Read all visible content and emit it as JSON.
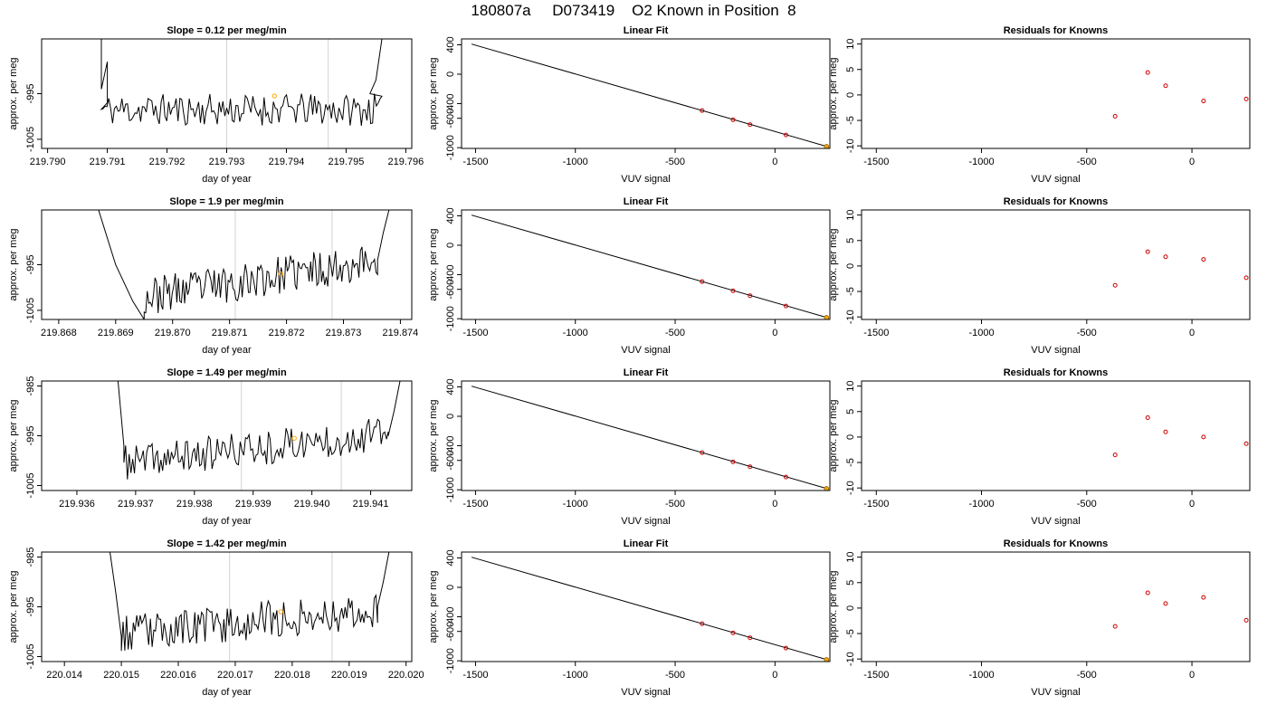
{
  "page_title": "180807a     D073419    O2 Known in Position  8",
  "colors": {
    "trace": "#000000",
    "marker": "#ffa500",
    "residual": "#cc0000",
    "guide_line": "#d3d3d3"
  },
  "chart_data": [
    {
      "type": "line",
      "title": "Slope =  0.12  per meg/min",
      "xlabel": "day of year",
      "ylabel": "approx. per meg",
      "xlim": [
        219.7899,
        219.7961
      ],
      "ylim": [
        -1007,
        -983
      ],
      "x_ticks": [
        "219.790",
        "219.791",
        "219.792",
        "219.793",
        "219.794",
        "219.795",
        "219.796"
      ],
      "x_tick_values": [
        219.79,
        219.791,
        219.792,
        219.793,
        219.794,
        219.795,
        219.796
      ],
      "y_ticks": [
        "-1005",
        "-995"
      ],
      "y_tick_values": [
        -1005,
        -995
      ],
      "vertical_lines": [
        219.793,
        219.7947
      ],
      "marker": {
        "x": 219.7938,
        "y": -995.5
      },
      "trace": {
        "start": 219.7909,
        "end": 219.7956,
        "base": -998.5,
        "trend": 0.0,
        "noise": 2.2,
        "seed": 11,
        "left_edge": [
          [
            219.7909,
            -983
          ],
          [
            219.7909,
            -994
          ],
          [
            219.791,
            -988
          ],
          [
            219.791,
            -997
          ]
        ],
        "right_edge": [
          [
            219.7954,
            -995
          ],
          [
            219.7955,
            -992
          ],
          [
            219.7956,
            -983
          ]
        ]
      }
    },
    {
      "type": "line",
      "title": "Slope =  1.9  per meg/min",
      "xlabel": "day of year",
      "ylabel": "approx. per meg",
      "xlim": [
        219.8677,
        219.8742
      ],
      "ylim": [
        -1007,
        -983
      ],
      "x_ticks": [
        "219.868",
        "219.869",
        "219.870",
        "219.871",
        "219.872",
        "219.873",
        "219.874"
      ],
      "x_tick_values": [
        219.868,
        219.869,
        219.87,
        219.871,
        219.872,
        219.873,
        219.874
      ],
      "y_ticks": [
        "-1005",
        "-995"
      ],
      "y_tick_values": [
        -1005,
        -995
      ],
      "vertical_lines": [
        219.8711,
        219.8728
      ],
      "marker": {
        "x": 219.8719,
        "y": -997
      },
      "trace": {
        "start": 219.8695,
        "end": 219.8736,
        "base": -1002,
        "trend": 8.0,
        "noise": 2.6,
        "seed": 23,
        "left_edge": [
          [
            219.8687,
            -983
          ],
          [
            219.869,
            -995
          ],
          [
            219.8693,
            -1003
          ],
          [
            219.8695,
            -1007
          ]
        ],
        "right_edge": [
          [
            219.8736,
            -994
          ],
          [
            219.8737,
            -988
          ],
          [
            219.8738,
            -983
          ]
        ]
      }
    },
    {
      "type": "line",
      "title": "Slope =  1.49  per meg/min",
      "xlabel": "day of year",
      "ylabel": "approx. per meg",
      "xlim": [
        219.9354,
        219.9417
      ],
      "ylim": [
        -1006,
        -984
      ],
      "x_ticks": [
        "219.936",
        "219.937",
        "219.938",
        "219.939",
        "219.940",
        "219.941"
      ],
      "x_tick_values": [
        219.936,
        219.937,
        219.938,
        219.939,
        219.94,
        219.941
      ],
      "y_ticks": [
        "-1005",
        "-995",
        "-985"
      ],
      "y_tick_values": [
        -1005,
        -995,
        -985
      ],
      "vertical_lines": [
        219.9388,
        219.9405
      ],
      "marker": {
        "x": 219.9397,
        "y": -995.5
      },
      "trace": {
        "start": 219.9368,
        "end": 219.9413,
        "base": -1000.5,
        "trend": 6.0,
        "noise": 2.2,
        "seed": 37,
        "left_edge": [
          [
            219.9367,
            -984
          ],
          [
            219.9368,
            -997
          ]
        ],
        "right_edge": [
          [
            219.9413,
            -995
          ],
          [
            219.9414,
            -990
          ],
          [
            219.9415,
            -984
          ]
        ]
      }
    },
    {
      "type": "line",
      "title": "Slope =  1.42  per meg/min",
      "xlabel": "day of year",
      "ylabel": "approx. per meg",
      "xlim": [
        220.0136,
        220.0201
      ],
      "ylim": [
        -1006,
        -984
      ],
      "x_ticks": [
        "220.014",
        "220.015",
        "220.016",
        "220.017",
        "220.018",
        "220.019",
        "220.020"
      ],
      "x_tick_values": [
        220.014,
        220.015,
        220.016,
        220.017,
        220.018,
        220.019,
        220.02
      ],
      "y_ticks": [
        "-1005",
        "-995",
        "-985"
      ],
      "y_tick_values": [
        -1005,
        -995,
        -985
      ],
      "vertical_lines": [
        220.0169,
        220.0187
      ],
      "marker": {
        "x": 220.0178,
        "y": -996
      },
      "trace": {
        "start": 220.015,
        "end": 220.0195,
        "base": -1000.5,
        "trend": 5.0,
        "noise": 2.4,
        "seed": 53,
        "left_edge": [
          [
            220.0148,
            -984
          ],
          [
            220.0149,
            -992
          ],
          [
            220.015,
            -1001
          ]
        ],
        "right_edge": [
          [
            220.0195,
            -995
          ],
          [
            220.0196,
            -990
          ],
          [
            220.0197,
            -984
          ]
        ]
      }
    },
    {
      "type": "line",
      "title": "Linear Fit",
      "xlabel": "VUV signal",
      "ylabel": "approx. per meg",
      "xlim": [
        -1570,
        275
      ],
      "ylim": [
        -1010,
        480
      ],
      "x_ticks": [
        "-1500",
        "-1000",
        "-500",
        "0"
      ],
      "x_tick_values": [
        -1500,
        -1000,
        -500,
        0
      ],
      "y_ticks": [
        "-1000",
        "-600",
        "-400",
        "0",
        "400"
      ],
      "y_tick_values": [
        -1000,
        -600,
        -400,
        0,
        400
      ],
      "fit_line": [
        [
          -1520,
          410
        ],
        [
          268,
          -990
        ]
      ],
      "points": [
        [
          -365,
          -495
        ],
        [
          -210,
          -620
        ],
        [
          -125,
          -686
        ],
        [
          55,
          -827
        ]
      ],
      "highlight": [
        [
          258,
          -985
        ]
      ]
    },
    {
      "type": "line",
      "title": "Linear Fit",
      "xlabel": "VUV signal",
      "ylabel": "approx. per meg",
      "xlim": [
        -1570,
        275
      ],
      "ylim": [
        -1010,
        480
      ],
      "x_ticks": [
        "-1500",
        "-1000",
        "-500",
        "0"
      ],
      "x_tick_values": [
        -1500,
        -1000,
        -500,
        0
      ],
      "y_ticks": [
        "-1000",
        "-600",
        "-400",
        "0",
        "400"
      ],
      "y_tick_values": [
        -1000,
        -600,
        -400,
        0,
        400
      ],
      "fit_line": [
        [
          -1520,
          410
        ],
        [
          268,
          -990
        ]
      ],
      "points": [
        [
          -365,
          -495
        ],
        [
          -210,
          -620
        ],
        [
          -125,
          -686
        ],
        [
          55,
          -827
        ]
      ],
      "highlight": [
        [
          258,
          -985
        ]
      ]
    },
    {
      "type": "line",
      "title": "Linear Fit",
      "xlabel": "VUV signal",
      "ylabel": "approx. per meg",
      "xlim": [
        -1570,
        275
      ],
      "ylim": [
        -1010,
        480
      ],
      "x_ticks": [
        "-1500",
        "-1000",
        "-500",
        "0"
      ],
      "x_tick_values": [
        -1500,
        -1000,
        -500,
        0
      ],
      "y_ticks": [
        "-1000",
        "-600",
        "-400",
        "0",
        "400"
      ],
      "y_tick_values": [
        -1000,
        -600,
        -400,
        0,
        400
      ],
      "fit_line": [
        [
          -1520,
          410
        ],
        [
          268,
          -990
        ]
      ],
      "points": [
        [
          -365,
          -495
        ],
        [
          -210,
          -620
        ],
        [
          -125,
          -686
        ],
        [
          55,
          -827
        ]
      ],
      "highlight": [
        [
          258,
          -985
        ]
      ]
    },
    {
      "type": "line",
      "title": "Linear Fit",
      "xlabel": "VUV signal",
      "ylabel": "approx. per meg",
      "xlim": [
        -1570,
        275
      ],
      "ylim": [
        -1010,
        480
      ],
      "x_ticks": [
        "-1500",
        "-1000",
        "-500",
        "0"
      ],
      "x_tick_values": [
        -1500,
        -1000,
        -500,
        0
      ],
      "y_ticks": [
        "-1000",
        "-600",
        "-400",
        "0",
        "400"
      ],
      "y_tick_values": [
        -1000,
        -600,
        -400,
        0,
        400
      ],
      "fit_line": [
        [
          -1520,
          410
        ],
        [
          268,
          -990
        ]
      ],
      "points": [
        [
          -365,
          -495
        ],
        [
          -210,
          -620
        ],
        [
          -125,
          -686
        ],
        [
          55,
          -827
        ]
      ],
      "highlight": [
        [
          258,
          -985
        ]
      ]
    },
    {
      "type": "scatter",
      "title": "Residuals for Knowns",
      "xlabel": "VUV signal",
      "ylabel": "approx. per meg",
      "xlim": [
        -1570,
        275
      ],
      "ylim": [
        -10.5,
        11
      ],
      "x_ticks": [
        "-1500",
        "-1000",
        "-500",
        "0"
      ],
      "x_tick_values": [
        -1500,
        -1000,
        -500,
        0
      ],
      "y_ticks": [
        "-10",
        "-5",
        "0",
        "5",
        "10"
      ],
      "y_tick_values": [
        -10,
        -5,
        0,
        5,
        10
      ],
      "points": [
        [
          -365,
          -4.2
        ],
        [
          -210,
          4.4
        ],
        [
          -125,
          1.8
        ],
        [
          55,
          -1.2
        ],
        [
          258,
          -0.8
        ]
      ]
    },
    {
      "type": "scatter",
      "title": "Residuals for Knowns",
      "xlabel": "VUV signal",
      "ylabel": "approx. per meg",
      "xlim": [
        -1570,
        275
      ],
      "ylim": [
        -10.5,
        11
      ],
      "x_ticks": [
        "-1500",
        "-1000",
        "-500",
        "0"
      ],
      "x_tick_values": [
        -1500,
        -1000,
        -500,
        0
      ],
      "y_ticks": [
        "-10",
        "-5",
        "0",
        "5",
        "10"
      ],
      "y_tick_values": [
        -10,
        -5,
        0,
        5,
        10
      ],
      "points": [
        [
          -365,
          -3.8
        ],
        [
          -210,
          2.8
        ],
        [
          -125,
          1.8
        ],
        [
          55,
          1.3
        ],
        [
          258,
          -2.3
        ]
      ]
    },
    {
      "type": "scatter",
      "title": "Residuals for Knowns",
      "xlabel": "VUV signal",
      "ylabel": "approx. per meg",
      "xlim": [
        -1570,
        275
      ],
      "ylim": [
        -10.5,
        11
      ],
      "x_ticks": [
        "-1500",
        "-1000",
        "-500",
        "0"
      ],
      "x_tick_values": [
        -1500,
        -1000,
        -500,
        0
      ],
      "y_ticks": [
        "-10",
        "-5",
        "0",
        "5",
        "10"
      ],
      "y_tick_values": [
        -10,
        -5,
        0,
        5,
        10
      ],
      "points": [
        [
          -365,
          -3.5
        ],
        [
          -210,
          3.8
        ],
        [
          -125,
          1.0
        ],
        [
          55,
          0.0
        ],
        [
          258,
          -1.3
        ]
      ]
    },
    {
      "type": "scatter",
      "title": "Residuals for Knowns",
      "xlabel": "VUV signal",
      "ylabel": "approx. per meg",
      "xlim": [
        -1570,
        275
      ],
      "ylim": [
        -10.5,
        11
      ],
      "x_ticks": [
        "-1500",
        "-1000",
        "-500",
        "0"
      ],
      "x_tick_values": [
        -1500,
        -1000,
        -500,
        0
      ],
      "y_ticks": [
        "-10",
        "-5",
        "0",
        "5",
        "10"
      ],
      "y_tick_values": [
        -10,
        -5,
        0,
        5,
        10
      ],
      "points": [
        [
          -365,
          -3.6
        ],
        [
          -210,
          3.0
        ],
        [
          -125,
          0.9
        ],
        [
          55,
          2.1
        ],
        [
          258,
          -2.4
        ]
      ]
    }
  ]
}
